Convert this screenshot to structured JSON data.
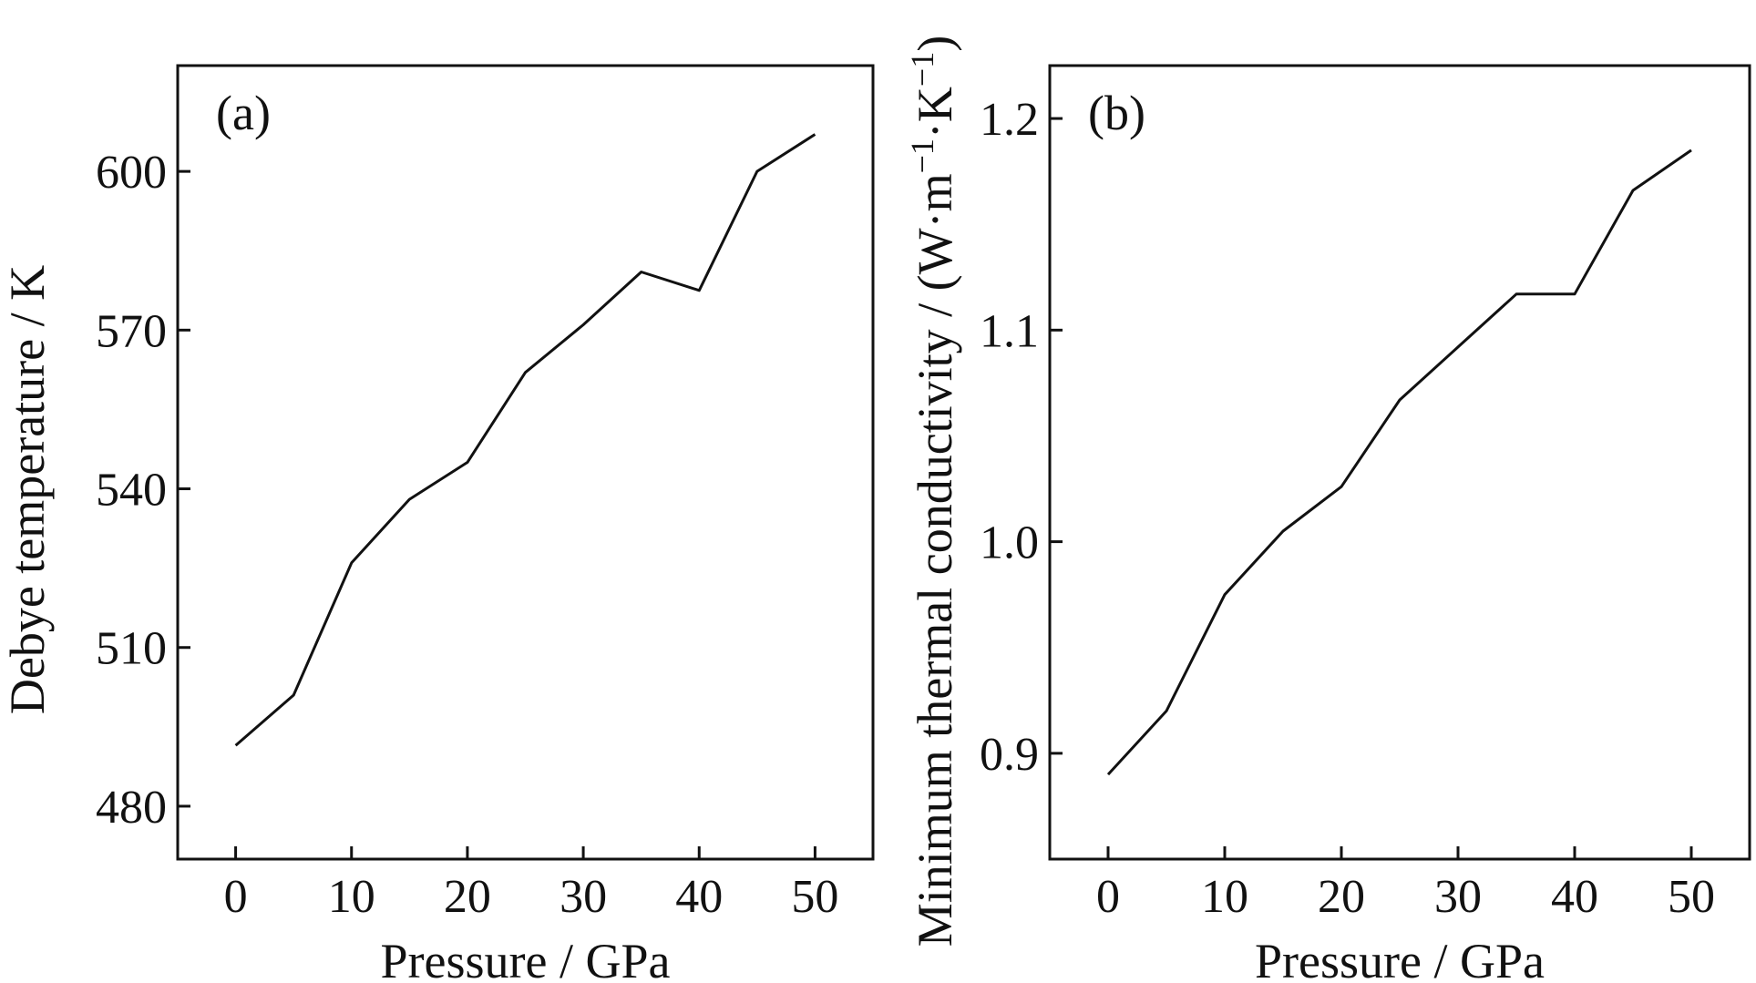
{
  "chart_data": [
    {
      "type": "line",
      "panel_label": "(a)",
      "xlabel": "Pressure / GPa",
      "ylabel": "Debye temperature / K",
      "xlim": [
        -5,
        55
      ],
      "ylim": [
        470,
        620
      ],
      "xticks": [
        0,
        10,
        20,
        30,
        40,
        50
      ],
      "yticks": [
        480,
        510,
        540,
        570,
        600
      ],
      "grid": false,
      "legend": "none",
      "x": [
        0,
        5,
        10,
        15,
        20,
        25,
        30,
        35,
        40,
        45,
        50
      ],
      "series": [
        {
          "values": [
            491.5,
            501,
            526,
            538,
            545,
            562,
            571,
            581,
            577.5,
            600,
            607
          ]
        }
      ]
    },
    {
      "type": "line",
      "panel_label": "(b)",
      "xlabel": "Pressure / GPa",
      "ylabel_main": "Minimum thermal conductivity / (W·m",
      "ylabel_sup1": "−1",
      "ylabel_mid": "·K",
      "ylabel_sup2": "−1",
      "ylabel_end": ")",
      "xlim": [
        -5,
        55
      ],
      "ylim": [
        0.85,
        1.225
      ],
      "xticks": [
        0,
        10,
        20,
        30,
        40,
        50
      ],
      "yticks": [
        0.9,
        1.0,
        1.1,
        1.2
      ],
      "grid": false,
      "legend": "none",
      "x": [
        0,
        5,
        10,
        15,
        20,
        25,
        30,
        35,
        40,
        45,
        50
      ],
      "series": [
        {
          "values": [
            0.89,
            0.92,
            0.975,
            1.005,
            1.026,
            1.067,
            1.092,
            1.117,
            1.117,
            1.166,
            1.185
          ]
        }
      ]
    }
  ]
}
